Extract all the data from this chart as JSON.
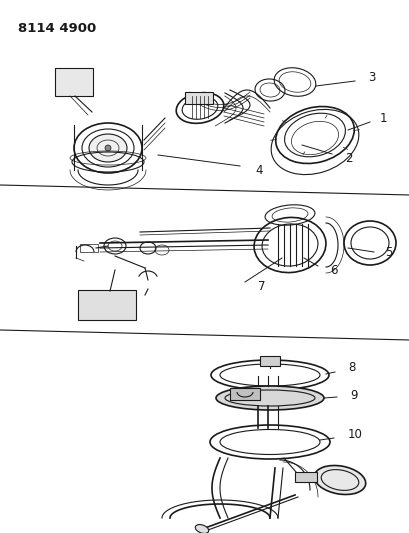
{
  "title": "8114 4900",
  "bg_color": "#ffffff",
  "line_color": "#1a1a1a",
  "fig_width": 4.1,
  "fig_height": 5.33,
  "dpi": 100
}
